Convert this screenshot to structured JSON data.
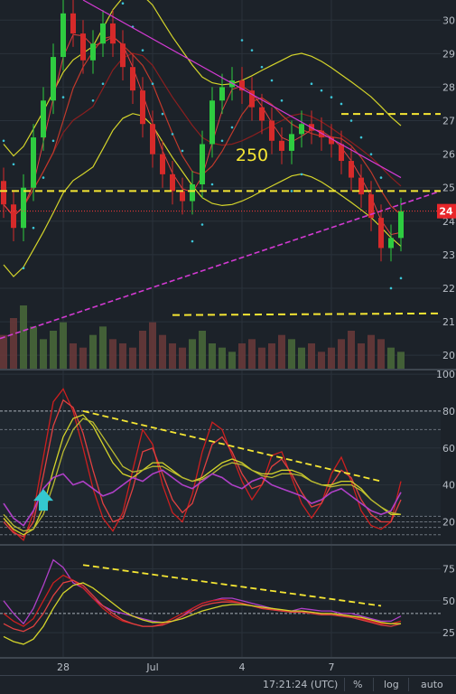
{
  "chart_data": [
    {
      "type": "candlestick",
      "pane": "price",
      "x_tick_labels": [
        "28",
        "Jul",
        "4",
        "7"
      ],
      "y_tick_labels": [
        "30",
        "29",
        "28",
        "27",
        "26",
        "25",
        "24",
        "23",
        "22",
        "21",
        "20"
      ],
      "ylim": [
        19.6,
        30.6
      ],
      "current_price_label": "24",
      "annotations": [
        {
          "text": "250"
        }
      ],
      "indicators": [
        "bollinger bands",
        "moving averages",
        "parabolic SAR",
        "volume",
        "trend lines"
      ],
      "colors": {
        "up": "#2ecc40",
        "down": "#d62a2a",
        "bands": "#d4d42a",
        "ma": "#c0392b",
        "sar": "#3cc6d8",
        "trend": "#d23ad2",
        "level": "#f5e633",
        "price_line": "#ff3b3b",
        "volume_up": "#4a6b3a",
        "volume_down": "#6b3a3a"
      },
      "series": [
        {
          "name": "price",
          "close": [
            24.5,
            23.8,
            25.0,
            26.5,
            27.6,
            28.9,
            30.2,
            29.6,
            28.8,
            29.3,
            29.9,
            29.3,
            28.6,
            27.9,
            26.9,
            26.0,
            25.4,
            24.9,
            24.6,
            25.1,
            26.3,
            27.6,
            28.0,
            28.2,
            27.9,
            27.4,
            27.0,
            26.4,
            26.1,
            26.6,
            26.9,
            26.7,
            26.5,
            26.3,
            25.8,
            25.3,
            24.8,
            24.1,
            23.2,
            23.5,
            24.3
          ],
          "open": [
            25.2,
            24.5,
            23.8,
            25.0,
            26.5,
            27.6,
            28.9,
            30.2,
            29.6,
            28.8,
            29.3,
            29.9,
            29.3,
            28.6,
            27.9,
            26.9,
            26.0,
            25.4,
            24.9,
            24.6,
            25.1,
            26.3,
            27.6,
            28.0,
            28.2,
            27.9,
            27.4,
            27.0,
            26.4,
            26.1,
            26.6,
            26.9,
            26.7,
            26.5,
            26.3,
            25.8,
            25.3,
            24.8,
            24.1,
            23.2,
            23.5
          ]
        },
        {
          "name": "volume",
          "values": [
            8,
            12,
            15,
            10,
            7,
            9,
            11,
            6,
            5,
            8,
            10,
            7,
            6,
            5,
            9,
            11,
            8,
            6,
            5,
            7,
            9,
            6,
            5,
            4,
            6,
            7,
            5,
            6,
            8,
            7,
            5,
            6,
            4,
            5,
            7,
            9,
            6,
            8,
            7,
            5,
            4
          ]
        }
      ],
      "levels": [
        24.9,
        21.2,
        27.2
      ]
    },
    {
      "type": "line",
      "pane": "oscillator",
      "y_tick_labels": [
        "100",
        "80",
        "60",
        "40",
        "20"
      ],
      "ylim": [
        8,
        102
      ],
      "reference_lines": [
        80,
        70,
        23,
        20,
        17,
        13
      ],
      "colors": {
        "primary": "#cc1f1f",
        "secondary": "#d4d42a",
        "purple": "#b040c8",
        "arrow": "#34c7d0"
      },
      "series": [
        {
          "name": "osc-1",
          "values": [
            22,
            15,
            10,
            25,
            55,
            85,
            92,
            80,
            60,
            38,
            22,
            15,
            25,
            48,
            70,
            62,
            40,
            25,
            20,
            35,
            58,
            74,
            70,
            56,
            42,
            32,
            40,
            56,
            58,
            44,
            30,
            22,
            30,
            46,
            55,
            42,
            26,
            18,
            16,
            20,
            42
          ]
        },
        {
          "name": "osc-2",
          "values": [
            20,
            14,
            12,
            20,
            45,
            72,
            86,
            82,
            68,
            48,
            30,
            20,
            22,
            38,
            58,
            60,
            46,
            32,
            25,
            30,
            46,
            62,
            66,
            58,
            46,
            38,
            40,
            50,
            54,
            46,
            36,
            28,
            30,
            40,
            48,
            44,
            32,
            24,
            20,
            20,
            32
          ]
        },
        {
          "name": "osc-slow-1",
          "values": [
            22,
            16,
            13,
            16,
            28,
            48,
            66,
            76,
            78,
            72,
            62,
            52,
            46,
            44,
            48,
            52,
            52,
            48,
            44,
            42,
            44,
            48,
            52,
            54,
            52,
            48,
            46,
            46,
            48,
            48,
            46,
            42,
            40,
            40,
            42,
            42,
            38,
            32,
            28,
            24,
            24
          ]
        },
        {
          "name": "osc-slow-2",
          "values": [
            24,
            18,
            15,
            16,
            24,
            40,
            58,
            70,
            76,
            74,
            66,
            58,
            50,
            47,
            48,
            50,
            50,
            47,
            44,
            42,
            43,
            46,
            50,
            52,
            51,
            48,
            45,
            44,
            46,
            46,
            45,
            42,
            40,
            39,
            40,
            40,
            37,
            32,
            28,
            25,
            24
          ]
        },
        {
          "name": "osc-purple",
          "values": [
            30,
            22,
            18,
            26,
            38,
            44,
            46,
            40,
            42,
            38,
            34,
            36,
            40,
            44,
            42,
            46,
            48,
            44,
            40,
            38,
            42,
            46,
            44,
            40,
            38,
            42,
            44,
            40,
            38,
            36,
            34,
            30,
            32,
            36,
            38,
            34,
            30,
            26,
            24,
            26,
            36
          ]
        }
      ],
      "trendline": {
        "from": [
          8,
          80
        ],
        "to": [
          38,
          42
        ]
      }
    },
    {
      "type": "line",
      "pane": "oscillator",
      "y_tick_labels": [
        "75",
        "50",
        "25"
      ],
      "ylim": [
        6,
        93
      ],
      "reference_lines": [
        40
      ],
      "colors": {
        "primary": "#cc1f1f",
        "secondary": "#d4d42a",
        "purple": "#b040c8"
      },
      "series": [
        {
          "name": "rsi-purple",
          "values": [
            50,
            40,
            32,
            44,
            62,
            82,
            76,
            64,
            60,
            52,
            46,
            42,
            40,
            38,
            36,
            34,
            33,
            34,
            38,
            44,
            48,
            50,
            52,
            52,
            50,
            48,
            46,
            44,
            42,
            42,
            44,
            43,
            42,
            42,
            40,
            40,
            38,
            36,
            34,
            34,
            38
          ]
        },
        {
          "name": "rsi-1",
          "values": [
            40,
            34,
            30,
            36,
            50,
            64,
            70,
            66,
            60,
            52,
            44,
            38,
            34,
            32,
            30,
            30,
            32,
            36,
            40,
            44,
            48,
            50,
            51,
            50,
            48,
            46,
            44,
            43,
            42,
            42,
            42,
            41,
            40,
            40,
            39,
            38,
            36,
            34,
            32,
            32,
            34
          ]
        },
        {
          "name": "rsi-2",
          "values": [
            32,
            28,
            26,
            30,
            40,
            54,
            64,
            66,
            62,
            54,
            46,
            40,
            35,
            32,
            30,
            30,
            31,
            34,
            38,
            42,
            46,
            48,
            49,
            49,
            48,
            46,
            44,
            43,
            42,
            41,
            41,
            40,
            39,
            39,
            38,
            37,
            35,
            33,
            31,
            30,
            32
          ]
        },
        {
          "name": "rsi-slow",
          "values": [
            22,
            18,
            16,
            20,
            30,
            44,
            56,
            62,
            64,
            60,
            54,
            48,
            42,
            38,
            35,
            33,
            33,
            34,
            36,
            39,
            42,
            44,
            46,
            47,
            47,
            46,
            45,
            44,
            43,
            42,
            42,
            41,
            40,
            40,
            39,
            38,
            37,
            35,
            33,
            32,
            32
          ]
        }
      ],
      "trendline": {
        "from": [
          8,
          78
        ],
        "to": [
          38,
          46
        ]
      }
    }
  ],
  "toolbar": {
    "time": "17:21:24 (UTC)",
    "percent": "%",
    "log": "log",
    "auto": "auto"
  }
}
